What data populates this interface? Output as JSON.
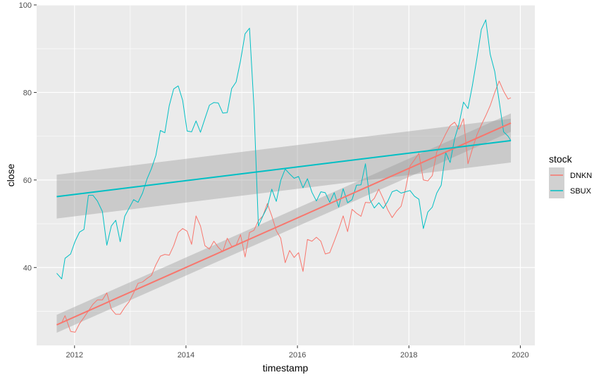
{
  "chart_data": {
    "type": "line",
    "xlabel": "timestamp",
    "ylabel": "close",
    "xlim": [
      2011.32,
      2020.26
    ],
    "ylim": [
      22.2,
      100.0
    ],
    "x_ticks": [
      2012,
      2014,
      2016,
      2018,
      2020
    ],
    "x_tick_labels": [
      "2012",
      "2014",
      "2016",
      "2018",
      "2020"
    ],
    "y_ticks": [
      40,
      60,
      80,
      100
    ],
    "y_tick_labels": [
      "40",
      "60",
      "80",
      "100"
    ],
    "grid": true,
    "legend": {
      "title": "stock",
      "position": "right"
    },
    "series": [
      {
        "name": "DNKN",
        "color": "#F8766D",
        "x": [
          2011.68,
          2011.77,
          2011.83,
          2011.93,
          2012.01,
          2012.09,
          2012.17,
          2012.25,
          2012.33,
          2012.41,
          2012.5,
          2012.58,
          2012.66,
          2012.74,
          2012.82,
          2012.9,
          2012.98,
          2013.06,
          2013.14,
          2013.22,
          2013.3,
          2013.38,
          2013.46,
          2013.54,
          2013.62,
          2013.7,
          2013.78,
          2013.86,
          2013.94,
          2014.02,
          2014.1,
          2014.18,
          2014.26,
          2014.34,
          2014.42,
          2014.5,
          2014.58,
          2014.66,
          2014.74,
          2014.82,
          2014.9,
          2014.98,
          2015.06,
          2015.14,
          2015.22,
          2015.3,
          2015.38,
          2015.46,
          2015.54,
          2015.62,
          2015.7,
          2015.78,
          2015.86,
          2015.94,
          2016.02,
          2016.1,
          2016.18,
          2016.26,
          2016.34,
          2016.42,
          2016.5,
          2016.58,
          2016.66,
          2016.74,
          2016.82,
          2016.9,
          2016.98,
          2017.06,
          2017.14,
          2017.22,
          2017.3,
          2017.38,
          2017.46,
          2017.54,
          2017.62,
          2017.7,
          2017.78,
          2017.86,
          2017.94,
          2018.02,
          2018.1,
          2018.18,
          2018.26,
          2018.34,
          2018.42,
          2018.5,
          2018.58,
          2018.66,
          2018.74,
          2018.82,
          2018.9,
          2018.98,
          2019.06,
          2019.14,
          2019.22,
          2019.3,
          2019.38,
          2019.46,
          2019.54,
          2019.62,
          2019.7,
          2019.78,
          2019.83
        ],
        "y": [
          26.9,
          27.4,
          29.0,
          25.4,
          25.2,
          27.2,
          28.6,
          30.1,
          31.6,
          32.6,
          32.6,
          34.2,
          30.5,
          29.3,
          29.3,
          30.9,
          32.2,
          34.2,
          36.4,
          36.7,
          37.5,
          38.2,
          40.6,
          42.6,
          43.0,
          42.8,
          45.0,
          48.0,
          48.9,
          48.3,
          45.3,
          51.8,
          49.5,
          45.0,
          44.2,
          46.0,
          44.6,
          43.6,
          46.7,
          44.8,
          45.1,
          47.5,
          42.4,
          48.0,
          48.5,
          50.7,
          51.8,
          54.6,
          51.8,
          48.4,
          46.7,
          41.1,
          43.9,
          42.3,
          43.4,
          39.1,
          46.4,
          46.0,
          46.9,
          46.0,
          43.1,
          43.4,
          46.0,
          48.7,
          51.8,
          48.2,
          53.3,
          52.4,
          51.7,
          54.9,
          54.8,
          55.8,
          57.9,
          55.7,
          53.2,
          51.4,
          52.9,
          54.0,
          57.9,
          63.2,
          64.6,
          66.1,
          60.0,
          59.8,
          61.0,
          66.4,
          68.4,
          70.5,
          72.4,
          73.2,
          71.6,
          74.0,
          63.7,
          67.1,
          70.3,
          72.6,
          74.7,
          77.0,
          80.0,
          82.6,
          80.3,
          78.5,
          78.8
        ]
      },
      {
        "name": "SBUX",
        "color": "#00BFC4",
        "x": [
          2011.68,
          2011.77,
          2011.83,
          2011.93,
          2012.01,
          2012.09,
          2012.17,
          2012.25,
          2012.33,
          2012.41,
          2012.5,
          2012.58,
          2012.66,
          2012.74,
          2012.82,
          2012.9,
          2012.98,
          2013.06,
          2013.14,
          2013.22,
          2013.3,
          2013.38,
          2013.46,
          2013.54,
          2013.62,
          2013.7,
          2013.78,
          2013.86,
          2013.94,
          2014.02,
          2014.1,
          2014.18,
          2014.26,
          2014.34,
          2014.42,
          2014.5,
          2014.58,
          2014.66,
          2014.74,
          2014.82,
          2014.9,
          2014.98,
          2015.06,
          2015.14,
          2015.22,
          2015.3,
          2015.38,
          2015.46,
          2015.54,
          2015.62,
          2015.7,
          2015.78,
          2015.86,
          2015.94,
          2016.02,
          2016.1,
          2016.18,
          2016.26,
          2016.34,
          2016.42,
          2016.5,
          2016.58,
          2016.66,
          2016.74,
          2016.82,
          2016.9,
          2016.98,
          2017.06,
          2017.14,
          2017.22,
          2017.3,
          2017.38,
          2017.46,
          2017.54,
          2017.62,
          2017.7,
          2017.78,
          2017.86,
          2017.94,
          2018.02,
          2018.1,
          2018.18,
          2018.26,
          2018.34,
          2018.42,
          2018.5,
          2018.58,
          2018.66,
          2018.74,
          2018.82,
          2018.9,
          2018.98,
          2019.06,
          2019.14,
          2019.22,
          2019.3,
          2019.38,
          2019.46,
          2019.54,
          2019.62,
          2019.7,
          2019.78,
          2019.83
        ],
        "y": [
          38.7,
          37.4,
          42.1,
          43.1,
          46.0,
          48.1,
          48.7,
          56.5,
          56.5,
          55.2,
          52.8,
          45.1,
          49.5,
          50.8,
          45.9,
          51.7,
          53.6,
          55.5,
          54.9,
          57.0,
          60.2,
          62.6,
          65.6,
          71.3,
          70.8,
          77.0,
          80.8,
          81.5,
          78.2,
          71.2,
          71.0,
          73.5,
          70.9,
          74.0,
          77.1,
          77.7,
          77.6,
          75.3,
          75.4,
          80.9,
          82.4,
          87.3,
          93.4,
          94.7,
          76.7,
          49.5,
          51.8,
          53.8,
          57.9,
          55.1,
          59.9,
          62.5,
          61.4,
          60.4,
          60.8,
          58.2,
          60.3,
          57.2,
          55.2,
          57.3,
          57.1,
          54.9,
          57.1,
          53.8,
          58.0,
          54.8,
          55.5,
          58.8,
          58.9,
          63.7,
          55.5,
          53.6,
          54.8,
          53.5,
          55.1,
          57.3,
          57.7,
          57.0,
          57.3,
          57.6,
          56.3,
          55.6,
          48.9,
          52.7,
          53.8,
          57.0,
          58.8,
          66.3,
          64.0,
          69.4,
          72.8,
          77.8,
          76.3,
          81.6,
          87.8,
          94.4,
          96.6,
          88.7,
          84.8,
          78.0,
          71.0,
          70.0,
          69.0
        ]
      }
    ],
    "trend_lines": [
      {
        "name": "DNKN",
        "x": [
          2011.68,
          2019.83
        ],
        "y": [
          26.9,
          73.0
        ],
        "ci_lower": [
          25.1,
          71.0
        ],
        "ci_upper": [
          29.2,
          75.2
        ]
      },
      {
        "name": "SBUX",
        "x": [
          2011.68,
          2019.83
        ],
        "y": [
          56.2,
          69.0
        ],
        "ci_lower": [
          51.2,
          64.0
        ],
        "ci_upper": [
          61.2,
          74.0
        ]
      }
    ],
    "colors": {
      "panel": "#EBEBEB",
      "grid": "#FFFFFF",
      "ribbon": "#999999"
    }
  }
}
